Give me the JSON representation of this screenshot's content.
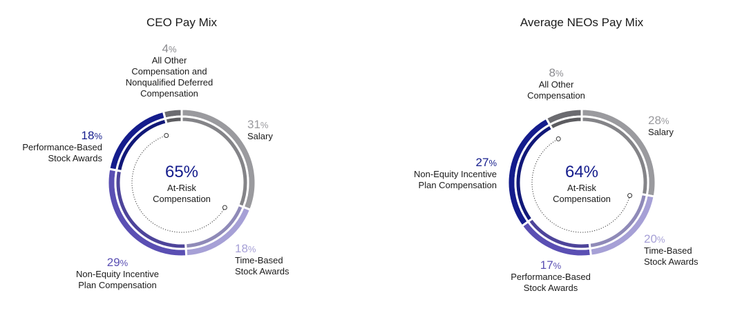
{
  "chart_data": [
    {
      "type": "donut",
      "title": "CEO Pay Mix",
      "center": {
        "value": "65%",
        "label_lines": [
          "At-Risk",
          "Compensation"
        ]
      },
      "slices": [
        {
          "name": "Salary",
          "value": 31,
          "pct_text": "31",
          "label_lines": [
            "Salary"
          ],
          "color": "#9a9a9e",
          "label_color": "#9a9a9e"
        },
        {
          "name": "Time-Based Stock Awards",
          "value": 18,
          "pct_text": "18",
          "label_lines": [
            "Time-Based",
            "Stock Awards"
          ],
          "color": "#a6a0d6",
          "label_color": "#a6a0d6"
        },
        {
          "name": "Non-Equity Incentive Plan Compensation",
          "value": 29,
          "pct_text": "29",
          "label_lines": [
            "Non-Equity Incentive",
            "Plan Compensation"
          ],
          "color": "#5a4fb3",
          "label_color": "#5a4fb3"
        },
        {
          "name": "Performance-Based Stock Awards",
          "value": 18,
          "pct_text": "18",
          "label_lines": [
            "Performance-Based",
            "Stock Awards"
          ],
          "color": "#141c8c",
          "label_color": "#141c8c"
        },
        {
          "name": "All Other Compensation and Nonqualified Deferred Compensation",
          "value": 4,
          "pct_text": "4",
          "label_lines": [
            "All Other",
            "Compensation and",
            "Nonqualified Deferred",
            "Compensation"
          ],
          "color": "#6b6b70",
          "label_color": "#8a8a8e"
        }
      ],
      "pct_sign": "%"
    },
    {
      "type": "donut",
      "title": "Average NEOs Pay Mix",
      "center": {
        "value": "64%",
        "label_lines": [
          "At-Risk",
          "Compensation"
        ]
      },
      "slices": [
        {
          "name": "Salary",
          "value": 28,
          "pct_text": "28",
          "label_lines": [
            "Salary"
          ],
          "color": "#9a9a9e",
          "label_color": "#9a9a9e"
        },
        {
          "name": "Time-Based Stock Awards",
          "value": 20,
          "pct_text": "20",
          "label_lines": [
            "Time-Based",
            "Stock Awards"
          ],
          "color": "#a6a0d6",
          "label_color": "#a6a0d6"
        },
        {
          "name": "Performance-Based Stock Awards",
          "value": 17,
          "pct_text": "17",
          "label_lines": [
            "Performance-Based",
            "Stock Awards"
          ],
          "color": "#5a4fb3",
          "label_color": "#5a4fb3"
        },
        {
          "name": "Non-Equity Incentive Plan Compensation",
          "value": 27,
          "pct_text": "27",
          "label_lines": [
            "Non-Equity Incentive",
            "Plan Compensation"
          ],
          "color": "#141c8c",
          "label_color": "#141c8c"
        },
        {
          "name": "All Other Compensation",
          "value": 8,
          "pct_text": "8",
          "label_lines": [
            "All Other",
            "Compensation"
          ],
          "color": "#6b6b70",
          "label_color": "#8a8a8e"
        }
      ],
      "pct_sign": "%"
    }
  ],
  "colors": {
    "center_value": "#141c8c",
    "text": "#1a1a1a"
  }
}
